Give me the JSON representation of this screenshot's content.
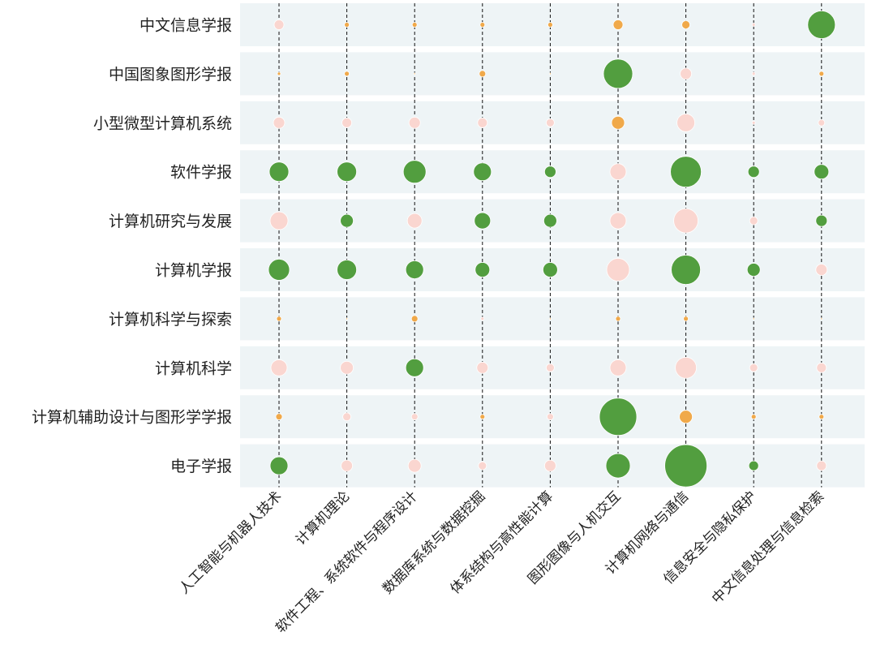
{
  "chart_data": {
    "type": "bubble",
    "rows": [
      "中文信息学报",
      "中国图象图形学报",
      "小型微型计算机系统",
      "软件学报",
      "计算机研究与发展",
      "计算机学报",
      "计算机科学与探索",
      "计算机科学",
      "计算机辅助设计与图形学学报",
      "电子学报"
    ],
    "columns": [
      "人工智能与机器人技术",
      "计算机理论",
      "软件工程、系统软件与程序设计",
      "数据库系统与数据挖掘",
      "体系结构与高性能计算",
      "图形图像与人机交互",
      "计算机网络与通信",
      "信息安全与隐私保护",
      "中文信息处理与信息检索"
    ],
    "sizes": [
      [
        6,
        3,
        3,
        3,
        3,
        6,
        5,
        2,
        17
      ],
      [
        2,
        3,
        1,
        4,
        1,
        18,
        7,
        2,
        3
      ],
      [
        7,
        6,
        7,
        6,
        5,
        8,
        11,
        2,
        4
      ],
      [
        12,
        12,
        14,
        11,
        7,
        10,
        19,
        7,
        9
      ],
      [
        11,
        8,
        9,
        10,
        8,
        10,
        15,
        5,
        7
      ],
      [
        13,
        12,
        11,
        9,
        9,
        14,
        18,
        8,
        7
      ],
      [
        3,
        1,
        4,
        2,
        1,
        3,
        3,
        1,
        1
      ],
      [
        10,
        8,
        11,
        7,
        5,
        10,
        13,
        5,
        6
      ],
      [
        4,
        5,
        4,
        3,
        4,
        23,
        8,
        3,
        3
      ],
      [
        11,
        7,
        8,
        5,
        7,
        15,
        26,
        6,
        6
      ]
    ],
    "colors": [
      [
        "pink",
        "orange",
        "orange",
        "orange",
        "orange",
        "orange",
        "orange",
        "pink",
        "green"
      ],
      [
        "orange",
        "orange",
        "orange",
        "orange",
        "orange",
        "green",
        "pink",
        "pink",
        "orange"
      ],
      [
        "pink",
        "pink",
        "pink",
        "pink",
        "pink",
        "orange",
        "pink",
        "pink",
        "pink"
      ],
      [
        "green",
        "green",
        "green",
        "green",
        "green",
        "pink",
        "green",
        "green",
        "green"
      ],
      [
        "pink",
        "green",
        "pink",
        "green",
        "green",
        "pink",
        "pink",
        "pink",
        "green"
      ],
      [
        "green",
        "green",
        "green",
        "green",
        "green",
        "pink",
        "green",
        "green",
        "pink"
      ],
      [
        "orange",
        "orange",
        "orange",
        "pink",
        "orange",
        "orange",
        "orange",
        "orange",
        "orange"
      ],
      [
        "pink",
        "pink",
        "green",
        "pink",
        "pink",
        "pink",
        "pink",
        "pink",
        "pink"
      ],
      [
        "orange",
        "pink",
        "pink",
        "orange",
        "pink",
        "green",
        "orange",
        "orange",
        "orange"
      ],
      [
        "green",
        "pink",
        "pink",
        "pink",
        "pink",
        "green",
        "green",
        "green",
        "pink"
      ]
    ],
    "palette": {
      "green": "#529e3f",
      "pink": "#fad6d0",
      "orange": "#f0a94a",
      "band": "#eef4f6",
      "guide": "#111111"
    },
    "grid": false,
    "legend": "none"
  }
}
